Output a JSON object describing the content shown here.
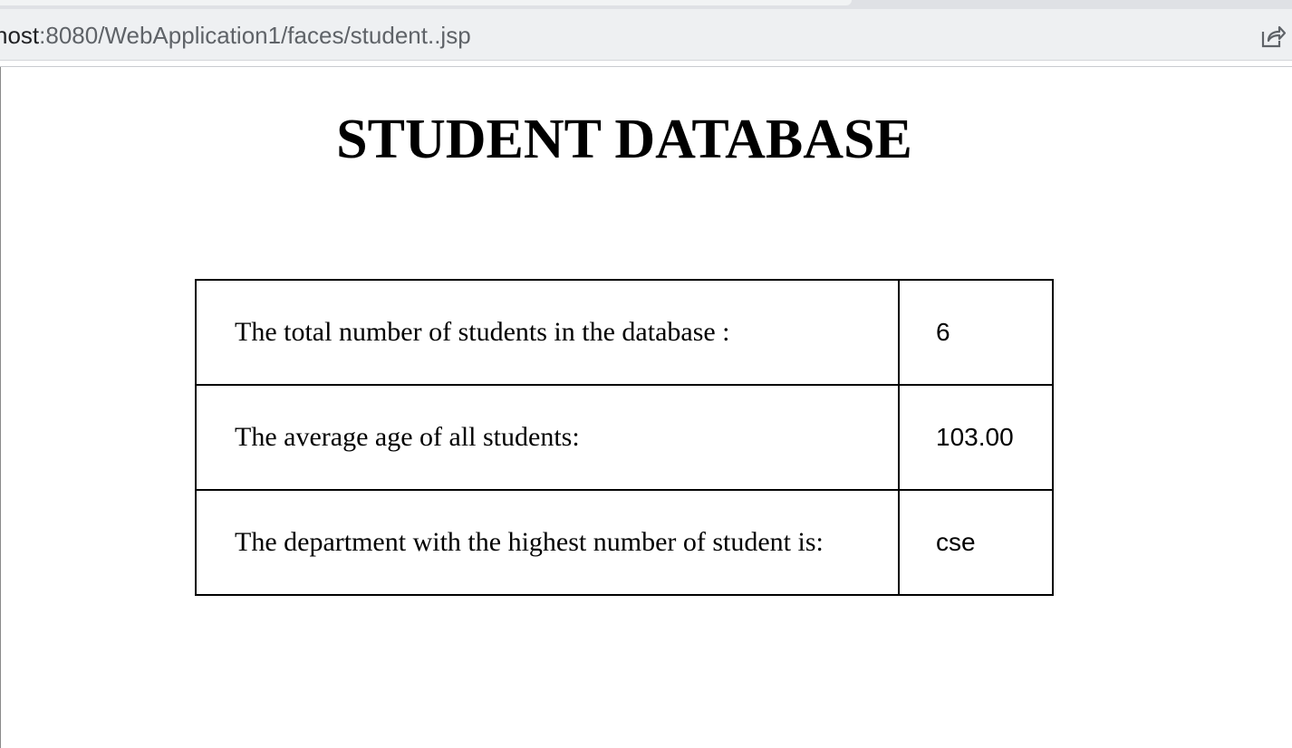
{
  "browser": {
    "url_host": "nost",
    "url_rest": ":8080/WebApplication1/faces/student..jsp",
    "share_icon": "share-icon"
  },
  "page": {
    "title": "STUDENT DATABASE"
  },
  "stats_table": {
    "rows": [
      {
        "label": "The total number of students in the database :",
        "value": "6"
      },
      {
        "label": "The average age of all students:",
        "value": "103.00"
      },
      {
        "label": "The department with the highest number of student is:",
        "value": "cse"
      }
    ]
  }
}
